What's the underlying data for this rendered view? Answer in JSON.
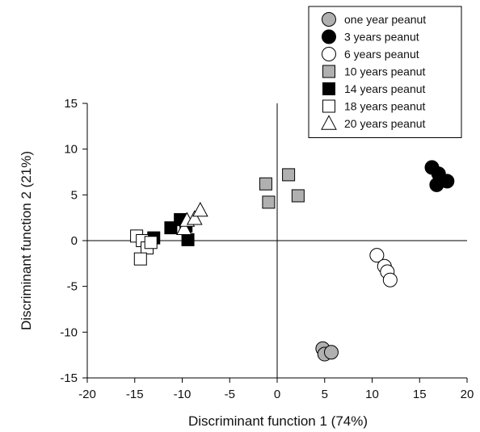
{
  "chart_data": {
    "type": "scatter",
    "xlabel": "Discriminant function 1 (74%)",
    "ylabel": "Discriminant function 2 (21%)",
    "xlim": [
      -20,
      20
    ],
    "ylim": [
      -15,
      15
    ],
    "xticks": [
      -20,
      -15,
      -10,
      -5,
      0,
      5,
      10,
      15,
      20
    ],
    "yticks": [
      -15,
      -10,
      -5,
      0,
      5,
      10,
      15
    ],
    "reference_lines": {
      "x": 0,
      "y": 0
    },
    "grid": false,
    "legend_position": "top-right",
    "series": [
      {
        "name": "one year peanut",
        "marker": "circle",
        "fill": "#b0b0b0",
        "x": [
          4.8,
          5.0,
          5.7
        ],
        "y": [
          -11.8,
          -12.4,
          -12.2
        ]
      },
      {
        "name": "3 years peanut",
        "marker": "circle",
        "fill": "#000000",
        "x": [
          16.3,
          17.0,
          17.9,
          16.8
        ],
        "y": [
          8.0,
          7.3,
          6.5,
          6.1
        ]
      },
      {
        "name": "6 years peanut",
        "marker": "circle",
        "fill": "#ffffff",
        "x": [
          10.5,
          11.3,
          11.6,
          11.9
        ],
        "y": [
          -1.6,
          -2.8,
          -3.4,
          -4.3
        ]
      },
      {
        "name": "10 years peanut",
        "marker": "square",
        "fill": "#b0b0b0",
        "x": [
          -1.2,
          1.2,
          -0.9,
          2.2
        ],
        "y": [
          6.2,
          7.2,
          4.2,
          4.9
        ]
      },
      {
        "name": "14 years peanut",
        "marker": "square",
        "fill": "#000000",
        "x": [
          -13.0,
          -11.2,
          -10.2,
          -9.6,
          -9.4
        ],
        "y": [
          0.3,
          1.4,
          2.3,
          1.6,
          0.1
        ]
      },
      {
        "name": "18 years peanut",
        "marker": "square",
        "fill": "#ffffff",
        "x": [
          -14.8,
          -14.2,
          -13.7,
          -13.3,
          -14.4
        ],
        "y": [
          0.5,
          0.0,
          -0.8,
          -0.2,
          -2.0
        ]
      },
      {
        "name": "20 years peanut",
        "marker": "triangle",
        "fill": "#ffffff",
        "x": [
          -9.8,
          -9.5,
          -8.7,
          -8.1
        ],
        "y": [
          1.3,
          2.2,
          2.4,
          3.3
        ]
      }
    ]
  }
}
